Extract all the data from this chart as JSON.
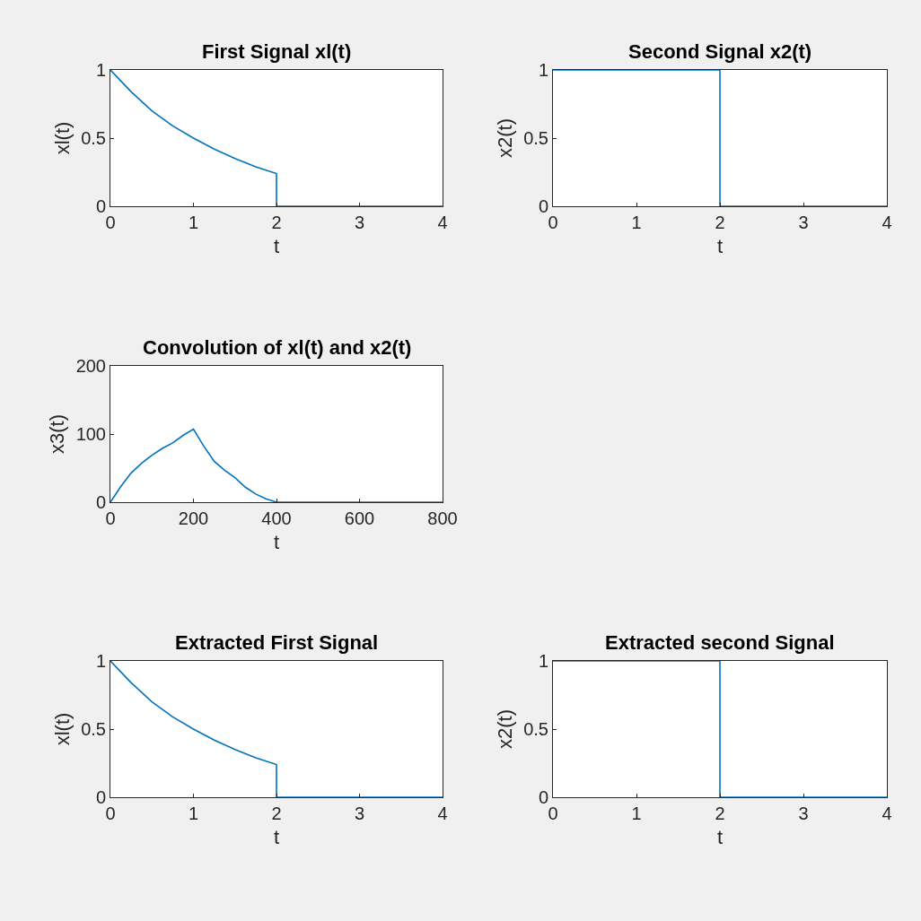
{
  "chart_data": [
    {
      "type": "line",
      "title": "First Signal xl(t)",
      "xlabel": "t",
      "ylabel": "xl(t)",
      "xlim": [
        0,
        4
      ],
      "ylim": [
        0,
        1
      ],
      "xticks": [
        0,
        1,
        2,
        3,
        4
      ],
      "yticks": [
        0,
        0.5,
        1
      ],
      "series": [
        {
          "color": "#0072bd",
          "x": [
            0,
            0.25,
            0.5,
            0.75,
            1,
            1.25,
            1.5,
            1.75,
            2,
            2,
            4
          ],
          "values": [
            1,
            0.84,
            0.7,
            0.59,
            0.5,
            0.42,
            0.35,
            0.29,
            0.24,
            0,
            0
          ]
        }
      ]
    },
    {
      "type": "line",
      "title": "Second Signal x2(t)",
      "xlabel": "t",
      "ylabel": "x2(t)",
      "xlim": [
        0,
        4
      ],
      "ylim": [
        0,
        1
      ],
      "xticks": [
        0,
        1,
        2,
        3,
        4
      ],
      "yticks": [
        0,
        0.5,
        1
      ],
      "series": [
        {
          "color": "#0072bd",
          "x": [
            0,
            2,
            2,
            4
          ],
          "values": [
            1,
            1,
            0,
            0
          ]
        }
      ]
    },
    {
      "type": "line",
      "title": "Convolution of xl(t) and x2(t)",
      "xlabel": "t",
      "ylabel": "x3(t)",
      "xlim": [
        0,
        800
      ],
      "ylim": [
        0,
        200
      ],
      "xticks": [
        0,
        200,
        400,
        600,
        800
      ],
      "yticks": [
        0,
        100,
        200
      ],
      "series": [
        {
          "color": "#0072bd",
          "x": [
            0,
            25,
            50,
            75,
            100,
            125,
            150,
            175,
            200,
            225,
            250,
            275,
            300,
            325,
            350,
            375,
            400,
            800
          ],
          "values": [
            0,
            23,
            43,
            57,
            69,
            79,
            87,
            98,
            107,
            82,
            60,
            47,
            36,
            22,
            12,
            5,
            0,
            0
          ]
        }
      ]
    },
    {
      "type": "line",
      "title": "Extracted First Signal",
      "xlabel": "t",
      "ylabel": "xl(t)",
      "xlim": [
        0,
        4
      ],
      "ylim": [
        0,
        1
      ],
      "xticks": [
        0,
        1,
        2,
        3,
        4
      ],
      "yticks": [
        0,
        0.5,
        1
      ],
      "series": [
        {
          "color": "#0072bd",
          "x": [
            0,
            0.25,
            0.5,
            0.75,
            1,
            1.25,
            1.5,
            1.75,
            2,
            2,
            4
          ],
          "values": [
            1,
            0.84,
            0.7,
            0.59,
            0.5,
            0.42,
            0.35,
            0.29,
            0.24,
            0,
            0
          ]
        }
      ]
    },
    {
      "type": "line",
      "title": "Extracted second Signal",
      "xlabel": "t",
      "ylabel": "x2(t)",
      "xlim": [
        0,
        4
      ],
      "ylim": [
        0,
        1
      ],
      "xticks": [
        0,
        1,
        2,
        3,
        4
      ],
      "yticks": [
        0,
        0.5,
        1
      ],
      "series": [
        {
          "color": "#0072bd",
          "x": [
            0,
            2,
            2,
            4
          ],
          "values": [
            1,
            1,
            0,
            0
          ]
        }
      ]
    }
  ]
}
